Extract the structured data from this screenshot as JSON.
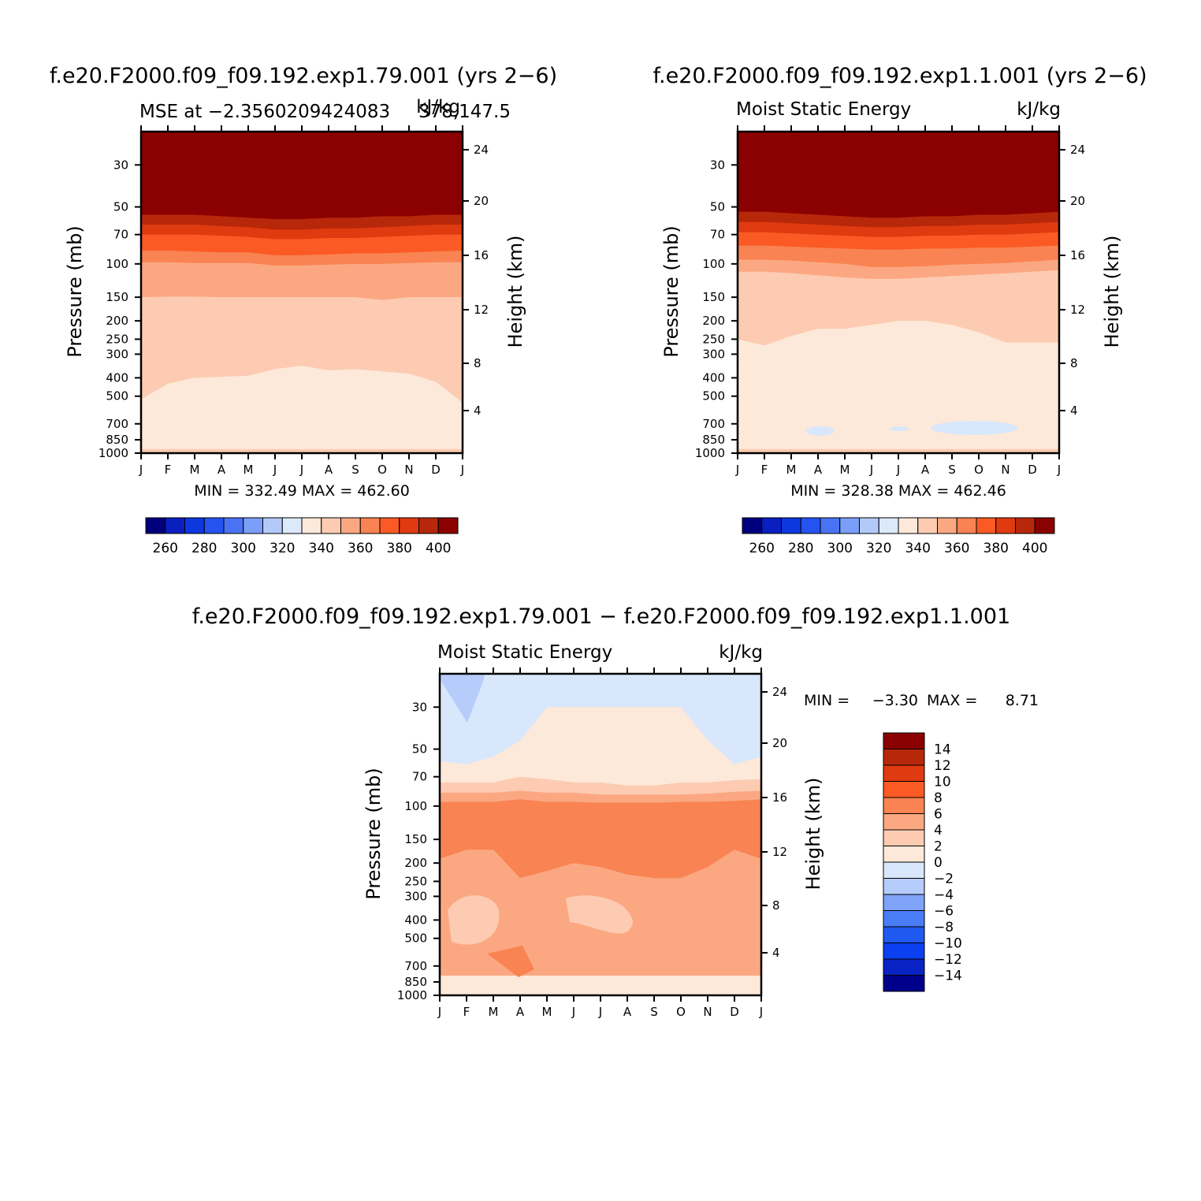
{
  "colors": {
    "full": [
      "#00007f",
      "#0a1fbf",
      "#0d38e0",
      "#2453f0",
      "#4a73f4",
      "#7b9ef8",
      "#b3caf9",
      "#dbe9fb",
      "#fde9d9",
      "#fccbb2",
      "#fba882",
      "#f98352",
      "#fb5a24",
      "#e03a10",
      "#b7270a",
      "#8b0000"
    ],
    "diff": [
      "#00008b",
      "#0a23c4",
      "#0c3ff0",
      "#2059f0",
      "#4a7cf6",
      "#7ea3f8",
      "#b6ccfb",
      "#d8e7fb",
      "#fde9d9",
      "#fccbb2",
      "#fba882",
      "#f98352",
      "#fb5a24",
      "#e03a10",
      "#b7270a",
      "#8b0000"
    ]
  },
  "panels": [
    {
      "run_title": "f.e20.F2000.f09_f09.192.exp1.79.001 (yrs 2−6)",
      "left_title": "MSE at −2.3560209424083",
      "right_title": "378,147.5",
      "units": "kJ/kg",
      "ylabel": "Pressure (mb)",
      "ylabel_right": "Height (km)",
      "minmax": "MIN = 332.49  MAX = 462.60"
    },
    {
      "run_title": "f.e20.F2000.f09_f09.192.exp1.1.001 (yrs 2−6)",
      "left_title": "Moist Static Energy",
      "right_title": "",
      "units": "kJ/kg",
      "ylabel": "Pressure (mb)",
      "ylabel_right": "Height (km)",
      "minmax": "MIN = 328.38  MAX = 462.46"
    },
    {
      "run_title": "f.e20.F2000.f09_f09.192.exp1.79.001 − f.e20.F2000.f09_f09.192.exp1.1.001",
      "left_title": "Moist Static Energy",
      "right_title": "",
      "units": "kJ/kg",
      "ylabel": "Pressure (mb)",
      "ylabel_right": "Height (km)",
      "minmax_label_min": "MIN =",
      "minmax_min": "−3.30",
      "minmax_label_max": "MAX =",
      "minmax_max": "8.71"
    }
  ],
  "chart_data": [
    {
      "type": "heatmap",
      "title": "f.e20.F2000.f09_f09.192.exp1.79.001 (yrs 2−6)",
      "subtitle": "MSE at −2.3560209424083",
      "units": "kJ/kg",
      "x_ticks": [
        "J",
        "F",
        "M",
        "A",
        "M",
        "J",
        "J",
        "A",
        "S",
        "O",
        "N",
        "D",
        "J"
      ],
      "y_ticks": [
        "30",
        "50",
        "70",
        "100",
        "150",
        "200",
        "250",
        "300",
        "400",
        "500",
        "700",
        "850",
        "1000"
      ],
      "y2_ticks": [
        "24",
        "20",
        "16",
        "12",
        "8",
        "4"
      ],
      "ylabel": "Pressure (mb)",
      "ylabel_right": "Height (km)",
      "ylim": [
        1000,
        30
      ],
      "y_scale": "log",
      "min": 332.49,
      "max": 462.6,
      "colorbar": [
        "260",
        "280",
        "300",
        "320",
        "340",
        "360",
        "380",
        "400"
      ],
      "contour_levels": [
        400,
        390,
        380,
        370,
        360,
        350,
        340,
        330
      ],
      "contour_levels_note": "isopleth pressure (mb) per month J..J",
      "isopleths_mb": [
        [
          55,
          55,
          55,
          56,
          57,
          58,
          58,
          57,
          57,
          56,
          56,
          55,
          55
        ],
        [
          62,
          62,
          62,
          63,
          64,
          66,
          66,
          65,
          65,
          64,
          63,
          62,
          62
        ],
        [
          70,
          70,
          70,
          71,
          72,
          74,
          74,
          73,
          73,
          72,
          71,
          70,
          70
        ],
        [
          85,
          85,
          86,
          87,
          87,
          90,
          90,
          89,
          88,
          88,
          87,
          86,
          85
        ],
        [
          98,
          98,
          99,
          99,
          99,
          102,
          102,
          101,
          100,
          100,
          99,
          98,
          98
        ],
        [
          150,
          149,
          149,
          150,
          150,
          150,
          150,
          150,
          150,
          155,
          150,
          150,
          150
        ],
        [
          520,
          430,
          400,
          395,
          390,
          360,
          345,
          365,
          360,
          370,
          380,
          420,
          540
        ],
        [
          950,
          950,
          950,
          950,
          950,
          950,
          950,
          950,
          950,
          950,
          950,
          950,
          950
        ]
      ]
    },
    {
      "type": "heatmap",
      "title": "f.e20.F2000.f09_f09.192.exp1.1.001 (yrs 2−6)",
      "subtitle": "Moist Static Energy",
      "units": "kJ/kg",
      "x_ticks": [
        "J",
        "F",
        "M",
        "A",
        "M",
        "J",
        "J",
        "A",
        "S",
        "O",
        "N",
        "D",
        "J"
      ],
      "y_ticks": [
        "30",
        "50",
        "70",
        "100",
        "150",
        "200",
        "250",
        "300",
        "400",
        "500",
        "700",
        "850",
        "1000"
      ],
      "y2_ticks": [
        "24",
        "20",
        "16",
        "12",
        "8",
        "4"
      ],
      "ylabel": "Pressure (mb)",
      "ylabel_right": "Height (km)",
      "ylim": [
        1000,
        30
      ],
      "y_scale": "log",
      "min": 328.38,
      "max": 462.46,
      "colorbar": [
        "260",
        "280",
        "300",
        "320",
        "340",
        "360",
        "380",
        "400"
      ],
      "contour_levels": [
        400,
        390,
        380,
        370,
        360,
        350,
        340,
        330
      ],
      "isopleths_mb": [
        [
          53,
          53,
          54,
          55,
          56,
          57,
          57,
          56,
          56,
          55,
          55,
          54,
          53
        ],
        [
          60,
          60,
          61,
          62,
          63,
          64,
          64,
          63,
          63,
          62,
          62,
          61,
          60
        ],
        [
          68,
          68,
          69,
          70,
          71,
          72,
          72,
          71,
          71,
          70,
          70,
          69,
          68
        ],
        [
          80,
          80,
          81,
          82,
          83,
          84,
          84,
          83,
          83,
          82,
          82,
          81,
          80
        ],
        [
          95,
          95,
          96,
          98,
          100,
          104,
          104,
          103,
          101,
          100,
          99,
          97,
          95
        ],
        [
          110,
          110,
          112,
          115,
          118,
          120,
          120,
          118,
          116,
          114,
          112,
          110,
          108
        ],
        [
          250,
          270,
          240,
          220,
          220,
          210,
          200,
          200,
          210,
          230,
          260,
          260,
          260
        ],
        [
          950,
          950,
          950,
          950,
          950,
          950,
          950,
          950,
          950,
          950,
          950,
          950,
          950
        ]
      ]
    },
    {
      "type": "heatmap",
      "title": "f.e20.F2000.f09_f09.192.exp1.79.001 − f.e20.F2000.f09_f09.192.exp1.1.001",
      "subtitle": "Moist Static Energy",
      "units": "kJ/kg",
      "x_ticks": [
        "J",
        "F",
        "M",
        "A",
        "M",
        "J",
        "J",
        "A",
        "S",
        "O",
        "N",
        "D",
        "J"
      ],
      "y_ticks": [
        "30",
        "50",
        "70",
        "100",
        "150",
        "200",
        "250",
        "300",
        "400",
        "500",
        "700",
        "850",
        "1000"
      ],
      "y2_ticks": [
        "24",
        "20",
        "16",
        "12",
        "8",
        "4"
      ],
      "ylabel": "Pressure (mb)",
      "ylabel_right": "Height (km)",
      "ylim": [
        1000,
        30
      ],
      "y_scale": "log",
      "min": -3.3,
      "max": 8.71,
      "colorbar": [
        "14",
        "12",
        "10",
        "8",
        "6",
        "4",
        "2",
        "0",
        "−2",
        "−4",
        "−6",
        "−8",
        "−10",
        "−12",
        "−14"
      ],
      "contour_levels": [
        0,
        2,
        4,
        6,
        8
      ],
      "isopleths_mb": [
        [
          58,
          60,
          55,
          45,
          30,
          30,
          30,
          30,
          30,
          30,
          45,
          60,
          55
        ],
        [
          75,
          75,
          75,
          70,
          72,
          75,
          75,
          78,
          78,
          75,
          75,
          73,
          72
        ],
        [
          85,
          85,
          85,
          83,
          85,
          85,
          87,
          87,
          87,
          87,
          86,
          84,
          83
        ],
        [
          95,
          95,
          95,
          92,
          95,
          95,
          96,
          96,
          96,
          95,
          95,
          94,
          92
        ],
        [
          190,
          170,
          170,
          240,
          220,
          200,
          210,
          230,
          240,
          240,
          210,
          170,
          190
        ],
        [
          850,
          820,
          820,
          840,
          860,
          860,
          830,
          830,
          850,
          860,
          840,
          840,
          850
        ]
      ]
    }
  ]
}
